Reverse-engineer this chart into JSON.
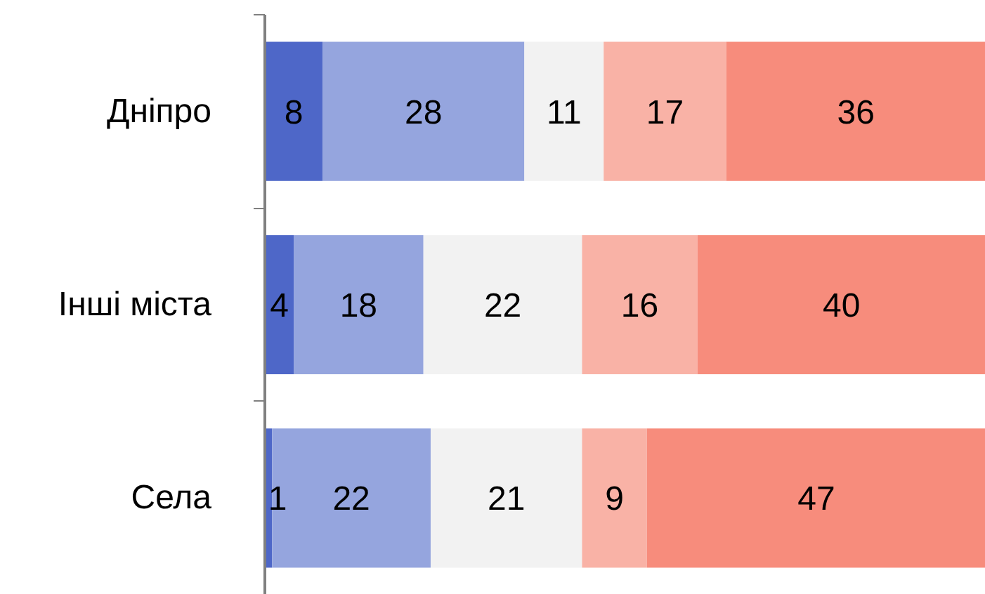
{
  "chart_data": {
    "type": "bar",
    "orientation": "horizontal",
    "stacked": true,
    "data_labels": true,
    "grid": false,
    "categories": [
      "Дніпро",
      "Інші міста",
      "Села"
    ],
    "series": [
      {
        "color": "#4e67c8",
        "values": [
          8,
          4,
          1
        ]
      },
      {
        "color": "#95a5de",
        "values": [
          28,
          18,
          22
        ]
      },
      {
        "color": "#f2f2f2",
        "values": [
          11,
          22,
          21
        ]
      },
      {
        "color": "#f9b2a6",
        "values": [
          17,
          16,
          9
        ]
      },
      {
        "color": "#f78c7c",
        "values": [
          36,
          40,
          47
        ]
      }
    ]
  }
}
